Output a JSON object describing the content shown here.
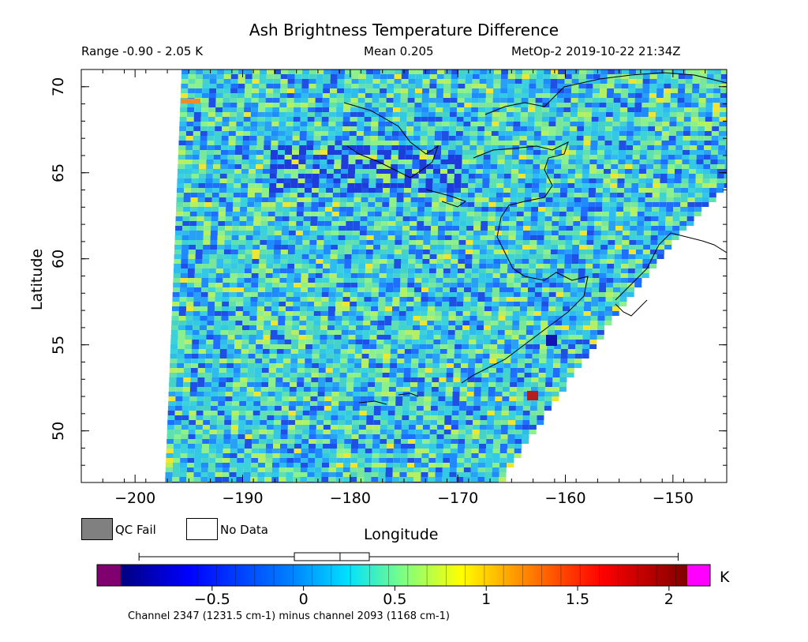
{
  "header": {
    "title": "Ash Brightness Temperature Difference",
    "range": "Range -0.90 - 2.05 K",
    "mean": "Mean 0.205",
    "satellite": "MetOp-2 2019-10-22 21:34Z"
  },
  "map": {
    "xlabel": "Longitude",
    "ylabel": "Latitude",
    "x_ticks": [
      "-200",
      "-190",
      "-180",
      "-170",
      "-160",
      "-150"
    ],
    "y_ticks": [
      "50",
      "55",
      "60",
      "65",
      "70"
    ],
    "xlim": [
      -205,
      -145
    ],
    "ylim": [
      47,
      71
    ],
    "colors": {
      "frame": "#000000",
      "no_data": "#ffffff",
      "coastline": "#000000"
    },
    "field_description_colors": [
      "#1e8cff",
      "#2ebcf0",
      "#5ee0b0",
      "#1e50e6"
    ]
  },
  "legend": {
    "qc_fail": {
      "label": "QC Fail",
      "color": "#808080"
    },
    "no_data": {
      "label": "No Data",
      "color": "#ffffff"
    }
  },
  "colorbar": {
    "unit": "K",
    "tick_labels": [
      "-0.5",
      "0",
      "0.5",
      "1",
      "1.5",
      "2"
    ],
    "tick_values": [
      -0.5,
      0,
      0.5,
      1,
      1.5,
      2
    ],
    "range": [
      -1.0,
      2.1
    ],
    "under_color": "#800070",
    "over_color": "#ff00ff",
    "boxplot": {
      "min": -0.9,
      "q1": -0.05,
      "median": 0.2,
      "q3": 0.36,
      "max": 2.05
    }
  },
  "footnote": "Channel 2347 (1231.5 cm-1) minus channel 2093 (1168 cm-1)"
}
